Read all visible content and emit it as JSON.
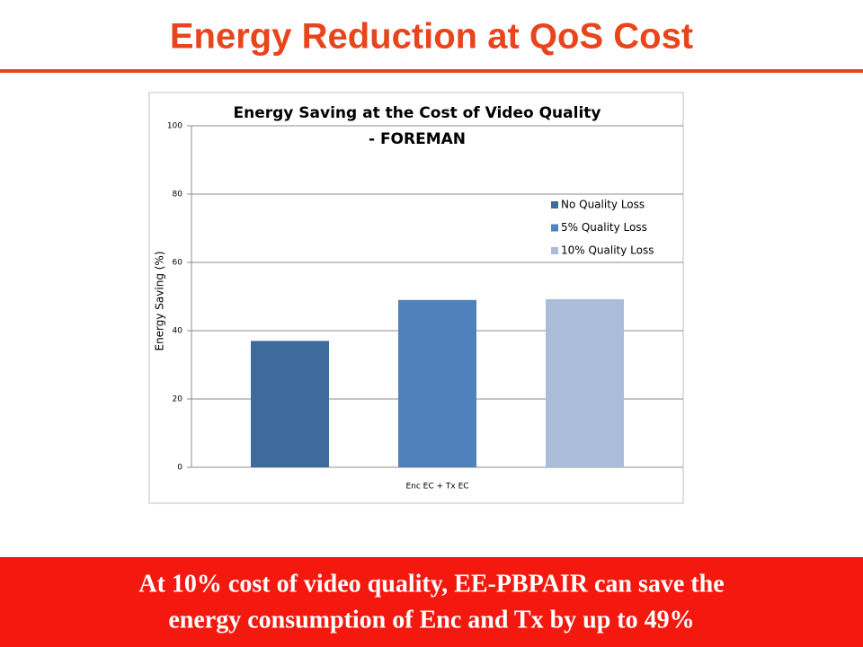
{
  "slide": {
    "title": "Energy Reduction at QoS Cost",
    "footer": [
      "At 10% cost of video quality, EE-PBPAIR can save the",
      "energy consumption  of Enc and Tx by up to 49%"
    ]
  },
  "chart_data": {
    "type": "bar",
    "title": [
      "Energy Saving at the Cost of Video Quality",
      "- FOREMAN"
    ],
    "y_label": "Energy Saving (%)",
    "categories": [
      "Enc EC + Tx EC"
    ],
    "series": [
      {
        "name": "No Quality Loss",
        "color": "#3f6a9c",
        "values": [
          37
        ]
      },
      {
        "name": "5% Quality Loss",
        "color": "#4f81bd",
        "values": [
          49
        ]
      },
      {
        "name": "10% Quality Loss",
        "color": "#a9bcd9",
        "values": [
          49.2
        ]
      }
    ],
    "ylim": [
      0,
      100
    ],
    "yticks": [
      0,
      20,
      40,
      60,
      80,
      100
    ],
    "grid": true,
    "legend": "right"
  }
}
